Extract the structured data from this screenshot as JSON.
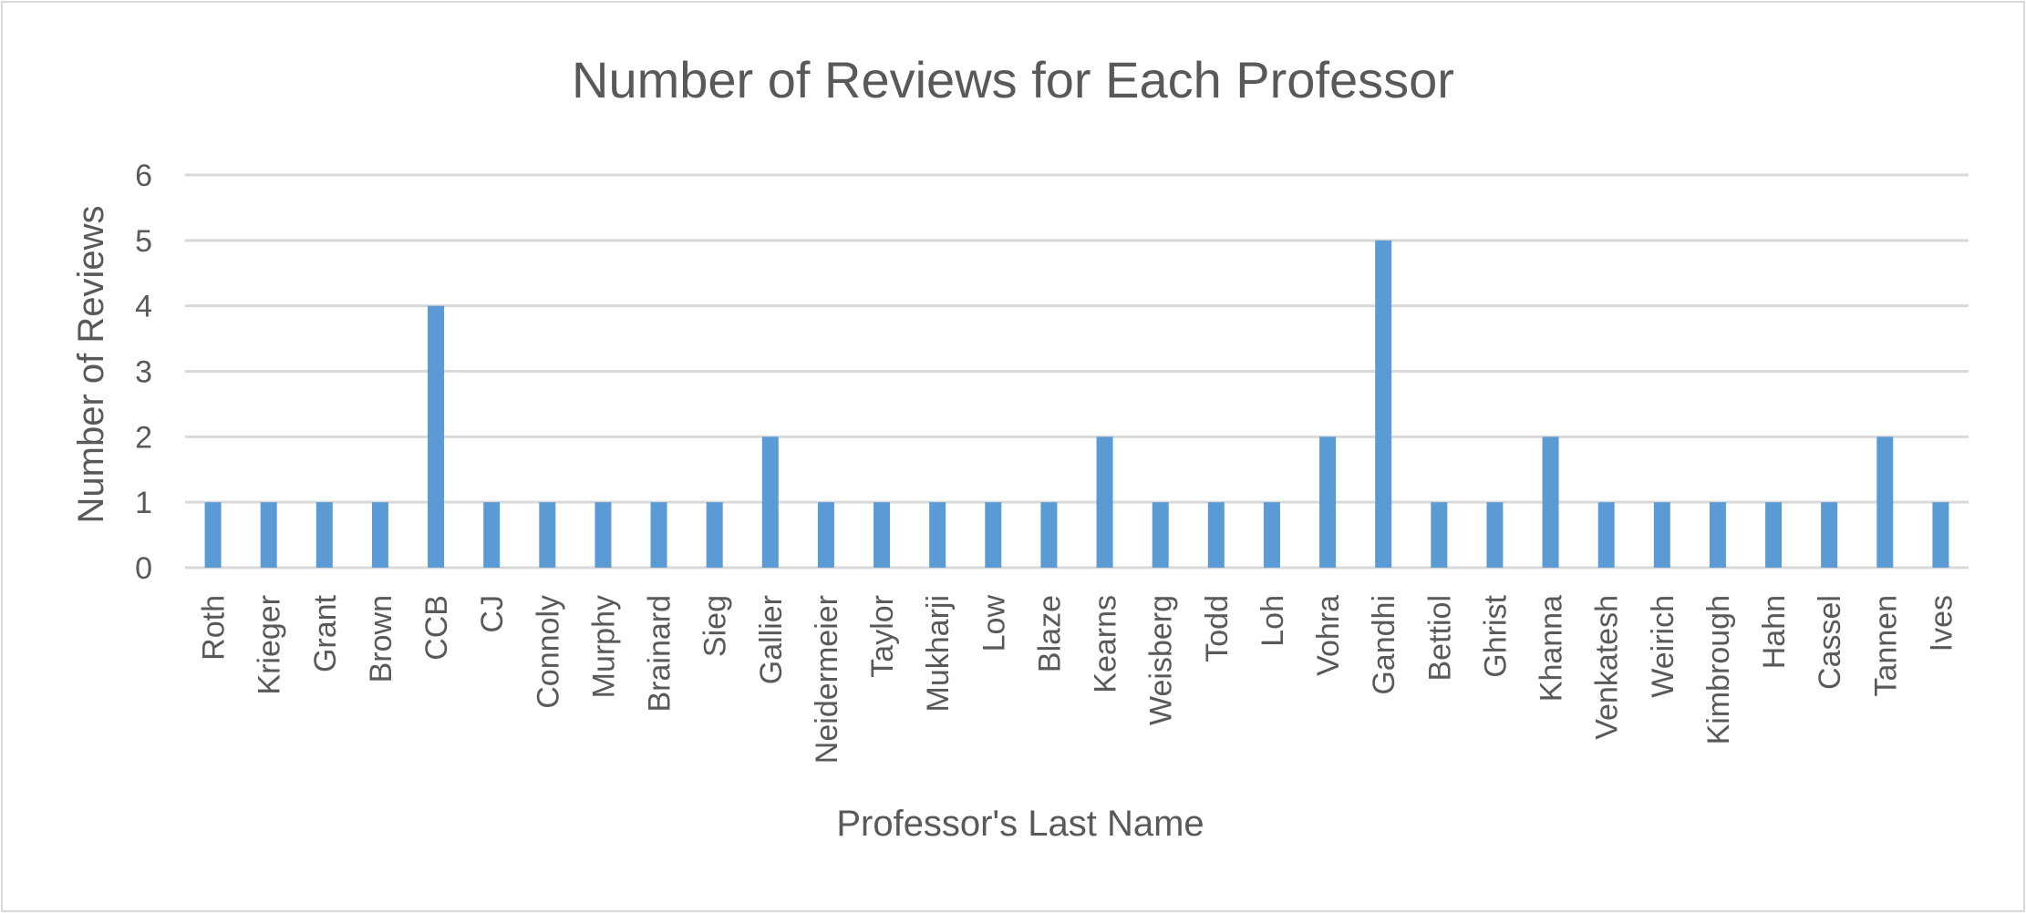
{
  "chart_data": {
    "type": "bar",
    "title": "Number of Reviews for Each Professor",
    "xlabel": "Professor's Last Name",
    "ylabel": "Number of Reviews",
    "ylim": [
      0,
      6
    ],
    "yticks": [
      0,
      1,
      2,
      3,
      4,
      5,
      6
    ],
    "grid": true,
    "legend": "none",
    "bar_color": "#5b9bd5",
    "categories": [
      "Roth",
      "Krieger",
      "Grant",
      "Brown",
      "CCB",
      "CJ",
      "Connoly",
      "Murphy",
      "Brainard",
      "Sieg",
      "Gallier",
      "Neidermeier",
      "Taylor",
      "Mukharji",
      "Low",
      "Blaze",
      "Kearns",
      "Weisberg",
      "Todd",
      "Loh",
      "Vohra",
      "Gandhi",
      "Bettiol",
      "Ghrist",
      "Khanna",
      "Venkatesh",
      "Weirich",
      "Kimbrough",
      "Hahn",
      "Cassel",
      "Tannen",
      "Ives"
    ],
    "values": [
      1,
      1,
      1,
      1,
      4,
      1,
      1,
      1,
      1,
      1,
      2,
      1,
      1,
      1,
      1,
      1,
      2,
      1,
      1,
      1,
      2,
      5,
      1,
      1,
      2,
      1,
      1,
      1,
      1,
      1,
      2,
      1
    ]
  }
}
